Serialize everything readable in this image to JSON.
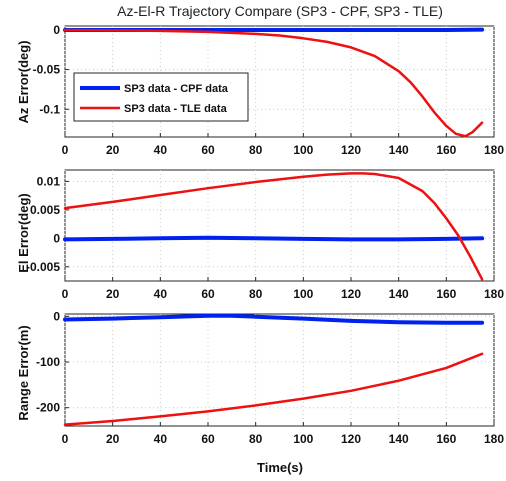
{
  "chart_data": [
    {
      "type": "line",
      "title": "Az-El-R Trajectory Compare (SP3 - CPF, SP3 - TLE)",
      "xlabel": "",
      "ylabel": "Az Error(deg)",
      "xlim": [
        0,
        180
      ],
      "ylim": [
        -0.135,
        0.005
      ],
      "xticks": [
        "0",
        "20",
        "40",
        "60",
        "80",
        "100",
        "120",
        "140",
        "160",
        "180"
      ],
      "yticks": [
        {
          "v": 0,
          "label": "0"
        },
        {
          "v": -0.05,
          "label": "-0.05"
        },
        {
          "v": -0.1,
          "label": "-0.1"
        }
      ],
      "grid": true,
      "legend": {
        "placement": "lower-left"
      },
      "series": [
        {
          "name": "SP3 data - CPF data",
          "color": "#0022ee",
          "x": [
            0,
            20,
            40,
            60,
            80,
            100,
            120,
            140,
            160,
            175
          ],
          "y": [
            0,
            0,
            0,
            0,
            0,
            0,
            0,
            0,
            0,
            0.0005
          ]
        },
        {
          "name": "SP3 data - TLE data",
          "color": "#ee1111",
          "x": [
            0,
            20,
            40,
            60,
            80,
            90,
            100,
            110,
            120,
            130,
            140,
            145,
            150,
            155,
            160,
            164,
            168,
            171,
            175
          ],
          "y": [
            0,
            -0.0005,
            -0.0012,
            -0.0025,
            -0.005,
            -0.007,
            -0.0105,
            -0.015,
            -0.022,
            -0.033,
            -0.052,
            -0.066,
            -0.084,
            -0.104,
            -0.121,
            -0.131,
            -0.134,
            -0.129,
            -0.117
          ]
        }
      ]
    },
    {
      "type": "line",
      "title": "",
      "xlabel": "",
      "ylabel": "El Error(deg)",
      "xlim": [
        0,
        180
      ],
      "ylim": [
        -0.0075,
        0.012
      ],
      "xticks": [
        "0",
        "20",
        "40",
        "60",
        "80",
        "100",
        "120",
        "140",
        "160",
        "180"
      ],
      "yticks": [
        {
          "v": 0.01,
          "label": "0.01"
        },
        {
          "v": 0.005,
          "label": "0.005"
        },
        {
          "v": 0,
          "label": "0"
        },
        {
          "v": -0.005,
          "label": "-0.005"
        }
      ],
      "grid": true,
      "series": [
        {
          "name": "SP3 data - CPF data",
          "color": "#0022ee",
          "x": [
            0,
            20,
            40,
            60,
            80,
            100,
            120,
            140,
            160,
            175
          ],
          "y": [
            -0.0002,
            -0.0001,
            0,
            0.0001,
            0,
            -0.0001,
            -0.0002,
            -0.0002,
            -0.0001,
            0
          ]
        },
        {
          "name": "SP3 data - TLE data",
          "color": "#ee1111",
          "x": [
            0,
            20,
            40,
            60,
            80,
            100,
            110,
            120,
            125,
            130,
            140,
            150,
            155,
            160,
            165,
            170,
            175
          ],
          "y": [
            0.0053,
            0.0064,
            0.0076,
            0.0088,
            0.0099,
            0.0108,
            0.0112,
            0.0114,
            0.0114,
            0.0113,
            0.0106,
            0.0083,
            0.0062,
            0.0035,
            0.0005,
            -0.0032,
            -0.0072
          ]
        }
      ]
    },
    {
      "type": "line",
      "title": "",
      "xlabel": "Time(s)",
      "ylabel": "Range Error(m)",
      "xlim": [
        0,
        180
      ],
      "ylim": [
        -240,
        5
      ],
      "xticks": [
        "0",
        "20",
        "40",
        "60",
        "80",
        "100",
        "120",
        "140",
        "160",
        "180"
      ],
      "yticks": [
        {
          "v": 0,
          "label": "0"
        },
        {
          "v": -100,
          "label": "-100"
        },
        {
          "v": -200,
          "label": "-200"
        }
      ],
      "grid": true,
      "series": [
        {
          "name": "SP3 data - CPF data",
          "color": "#0022ee",
          "x": [
            0,
            20,
            40,
            60,
            70,
            80,
            100,
            120,
            140,
            160,
            175
          ],
          "y": [
            -7,
            -5,
            -2,
            1,
            1,
            -1,
            -5,
            -10,
            -13,
            -14,
            -14
          ]
        },
        {
          "name": "SP3 data - TLE data",
          "color": "#ee1111",
          "x": [
            0,
            20,
            40,
            60,
            80,
            100,
            120,
            140,
            160,
            175
          ],
          "y": [
            -237,
            -229,
            -219,
            -208,
            -195,
            -180,
            -163,
            -141,
            -113,
            -82
          ]
        }
      ]
    }
  ]
}
